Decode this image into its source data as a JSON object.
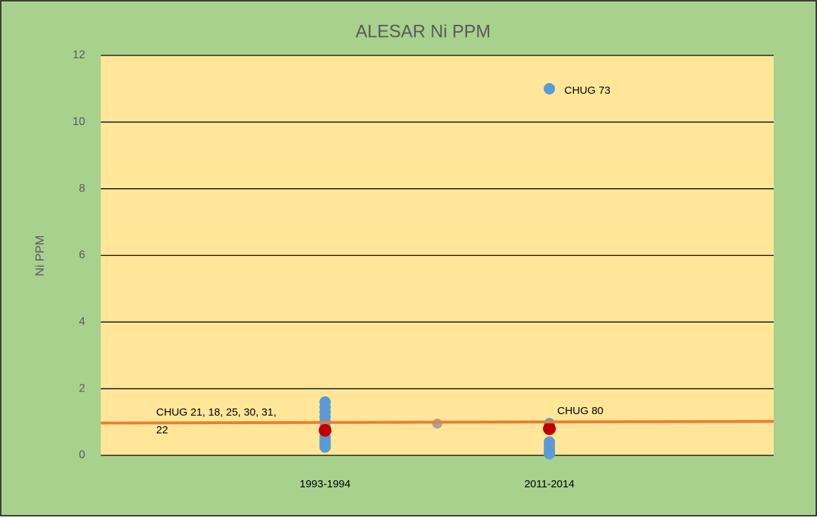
{
  "chart_data": {
    "type": "scatter",
    "title": "ALESAR Ni PPM",
    "y_label": "Ni PPM",
    "xlim": [
      0,
      3
    ],
    "xticks": [
      {
        "value": 1,
        "label": "1993-1994"
      },
      {
        "value": 2,
        "label": "2011-2014"
      }
    ],
    "ylim": [
      0,
      12
    ],
    "yticks": [
      0,
      2,
      4,
      6,
      8,
      10,
      12
    ],
    "grid": true,
    "series": [
      {
        "color": "#5b9bd5",
        "x": [
          1,
          1,
          1,
          1,
          1,
          1,
          1,
          1,
          1,
          1,
          1,
          2,
          2,
          2,
          2,
          2,
          2,
          2
        ],
        "values": [
          1.6,
          1.45,
          1.3,
          1.15,
          1.0,
          0.85,
          0.7,
          0.55,
          0.45,
          0.35,
          0.25,
          11.0,
          0.95,
          0.4,
          0.3,
          0.2,
          0.1,
          0.05
        ]
      },
      {
        "color": "#c00000",
        "x": [
          1,
          2
        ],
        "values": [
          0.75,
          0.8
        ]
      },
      {
        "color": "#a5a5a5",
        "x": [
          1.5
        ],
        "values": [
          0.95
        ]
      },
      {
        "color": "#ed7d31",
        "line": true,
        "x": [
          0,
          3
        ],
        "values": [
          0.97,
          1.02
        ]
      }
    ],
    "annotations": [
      [
        "CHUG 73"
      ],
      [
        "CHUG 80"
      ],
      [
        "CHUG 21, 18, 25, 30, 31,",
        "22"
      ]
    ]
  }
}
